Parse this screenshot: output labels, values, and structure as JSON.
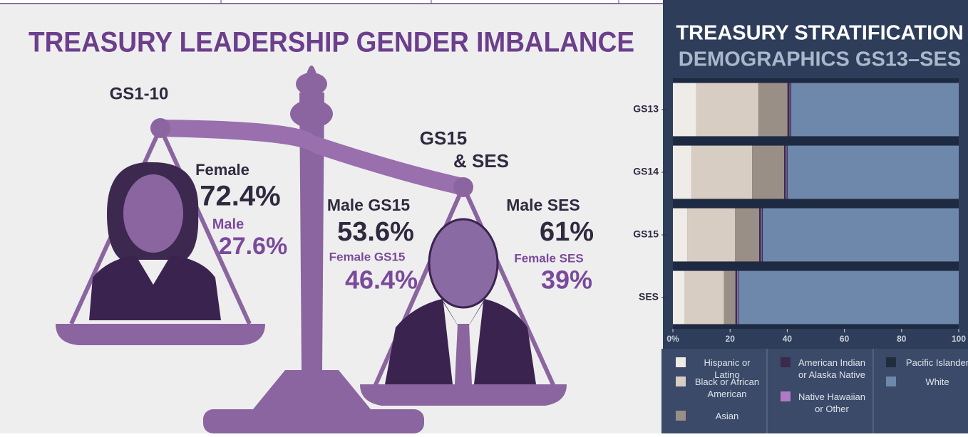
{
  "infographic": {
    "title": "TREASURY LEADERSHIP GENDER IMBALANCE",
    "left": {
      "grade": "GS1-10",
      "female_label": "Female",
      "female_value": "72.4%",
      "male_label": "Male",
      "male_value": "27.6%"
    },
    "right": {
      "grade_line1": "GS15",
      "grade_line2": "& SES",
      "male_gs15_label": "Male GS15",
      "male_gs15_value": "53.6%",
      "female_gs15_label": "Female GS15",
      "female_gs15_value": "46.4%",
      "male_ses_label": "Male SES",
      "male_ses_value": "61%",
      "female_ses_label": "Female SES",
      "female_ses_value": "39%"
    }
  },
  "chart_data": {
    "type": "bar",
    "orientation": "horizontal",
    "stacked": true,
    "title": "TREASURY STRATIFICATION",
    "subtitle": "DEMOGRAPHICS GS13–SES",
    "categories": [
      "GS13",
      "GS14",
      "GS15",
      "SES"
    ],
    "series": [
      {
        "name": "Hispanic or Latino",
        "color": "#efebe7",
        "values": [
          8.2,
          6.5,
          5.0,
          4.2
        ]
      },
      {
        "name": "Black or African American",
        "color": "#d7cdc3",
        "values": [
          21.7,
          21.2,
          16.7,
          13.7
        ]
      },
      {
        "name": "Asian",
        "color": "#9a8f86",
        "values": [
          10.2,
          11.2,
          8.5,
          4.0
        ]
      },
      {
        "name": "American Indian or Alaska Native",
        "color": "#3b2a4a",
        "values": [
          0.7,
          0.6,
          0.6,
          0.6
        ]
      },
      {
        "name": "Native Hawaiian or Other",
        "color": "#b07ac4",
        "values": [
          0.3,
          0.3,
          0.3,
          0.4
        ]
      },
      {
        "name": "Pacific Islander",
        "color": "#1f2d3d",
        "values": [
          0.3,
          0.3,
          0.3,
          0.2
        ]
      },
      {
        "name": "White",
        "color": "#6e88ab",
        "values": [
          58.6,
          59.9,
          68.6,
          76.9
        ]
      }
    ],
    "xlim": [
      0,
      100
    ],
    "xticks": [
      {
        "value": 0,
        "label": "0%"
      },
      20,
      40,
      60,
      80,
      100
    ]
  }
}
